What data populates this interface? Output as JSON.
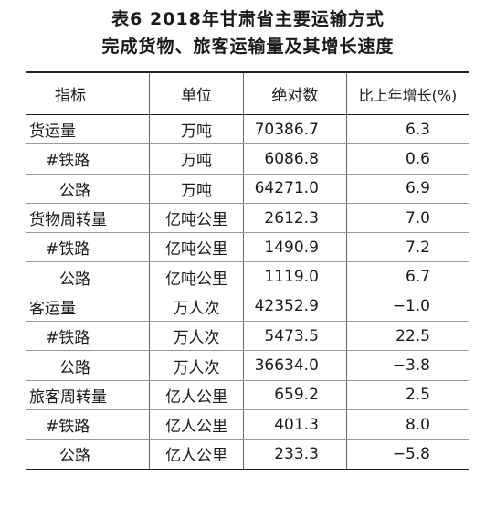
{
  "title_line1": "表6  2018年甘肃省主要运输方式",
  "title_line2": "完成货物、旅客运输量及其增长速度",
  "headers": [
    "指标",
    "单位",
    "绝对数",
    "比上年增长(%)"
  ],
  "rows": [
    {
      "indicator": "货运量",
      "unit": "万吨",
      "absolute": "70386.7",
      "growth": "6.3",
      "indent": 0
    },
    {
      "indicator": "#铁路",
      "unit": "万吨",
      "absolute": "6086.8",
      "growth": "0.6",
      "indent": 1
    },
    {
      "indicator": "公路",
      "unit": "万吨",
      "absolute": "64271.0",
      "growth": "6.9",
      "indent": 2
    },
    {
      "indicator": "货物周转量",
      "unit": "亿吨公里",
      "absolute": "2612.3",
      "growth": "7.0",
      "indent": 0
    },
    {
      "indicator": "#铁路",
      "unit": "亿吨公里",
      "absolute": "1490.9",
      "growth": "7.2",
      "indent": 1
    },
    {
      "indicator": "公路",
      "unit": "亿吨公里",
      "absolute": "1119.0",
      "growth": "6.7",
      "indent": 2
    },
    {
      "indicator": "客运量",
      "unit": "万人次",
      "absolute": "42352.9",
      "growth": "−1.0",
      "indent": 0
    },
    {
      "indicator": "#铁路",
      "unit": "万人次",
      "absolute": "5473.5",
      "growth": "22.5",
      "indent": 1
    },
    {
      "indicator": "公路",
      "unit": "万人次",
      "absolute": "36634.0",
      "growth": "−3.8",
      "indent": 2
    },
    {
      "indicator": "旅客周转量",
      "unit": "亿人公里",
      "absolute": "659.2",
      "growth": "2.5",
      "indent": 0
    },
    {
      "indicator": "#铁路",
      "unit": "亿人公里",
      "absolute": "401.3",
      "growth": "8.0",
      "indent": 1
    },
    {
      "indicator": "公路",
      "unit": "亿人公里",
      "absolute": "233.3",
      "growth": "−5.8",
      "indent": 2
    }
  ]
}
